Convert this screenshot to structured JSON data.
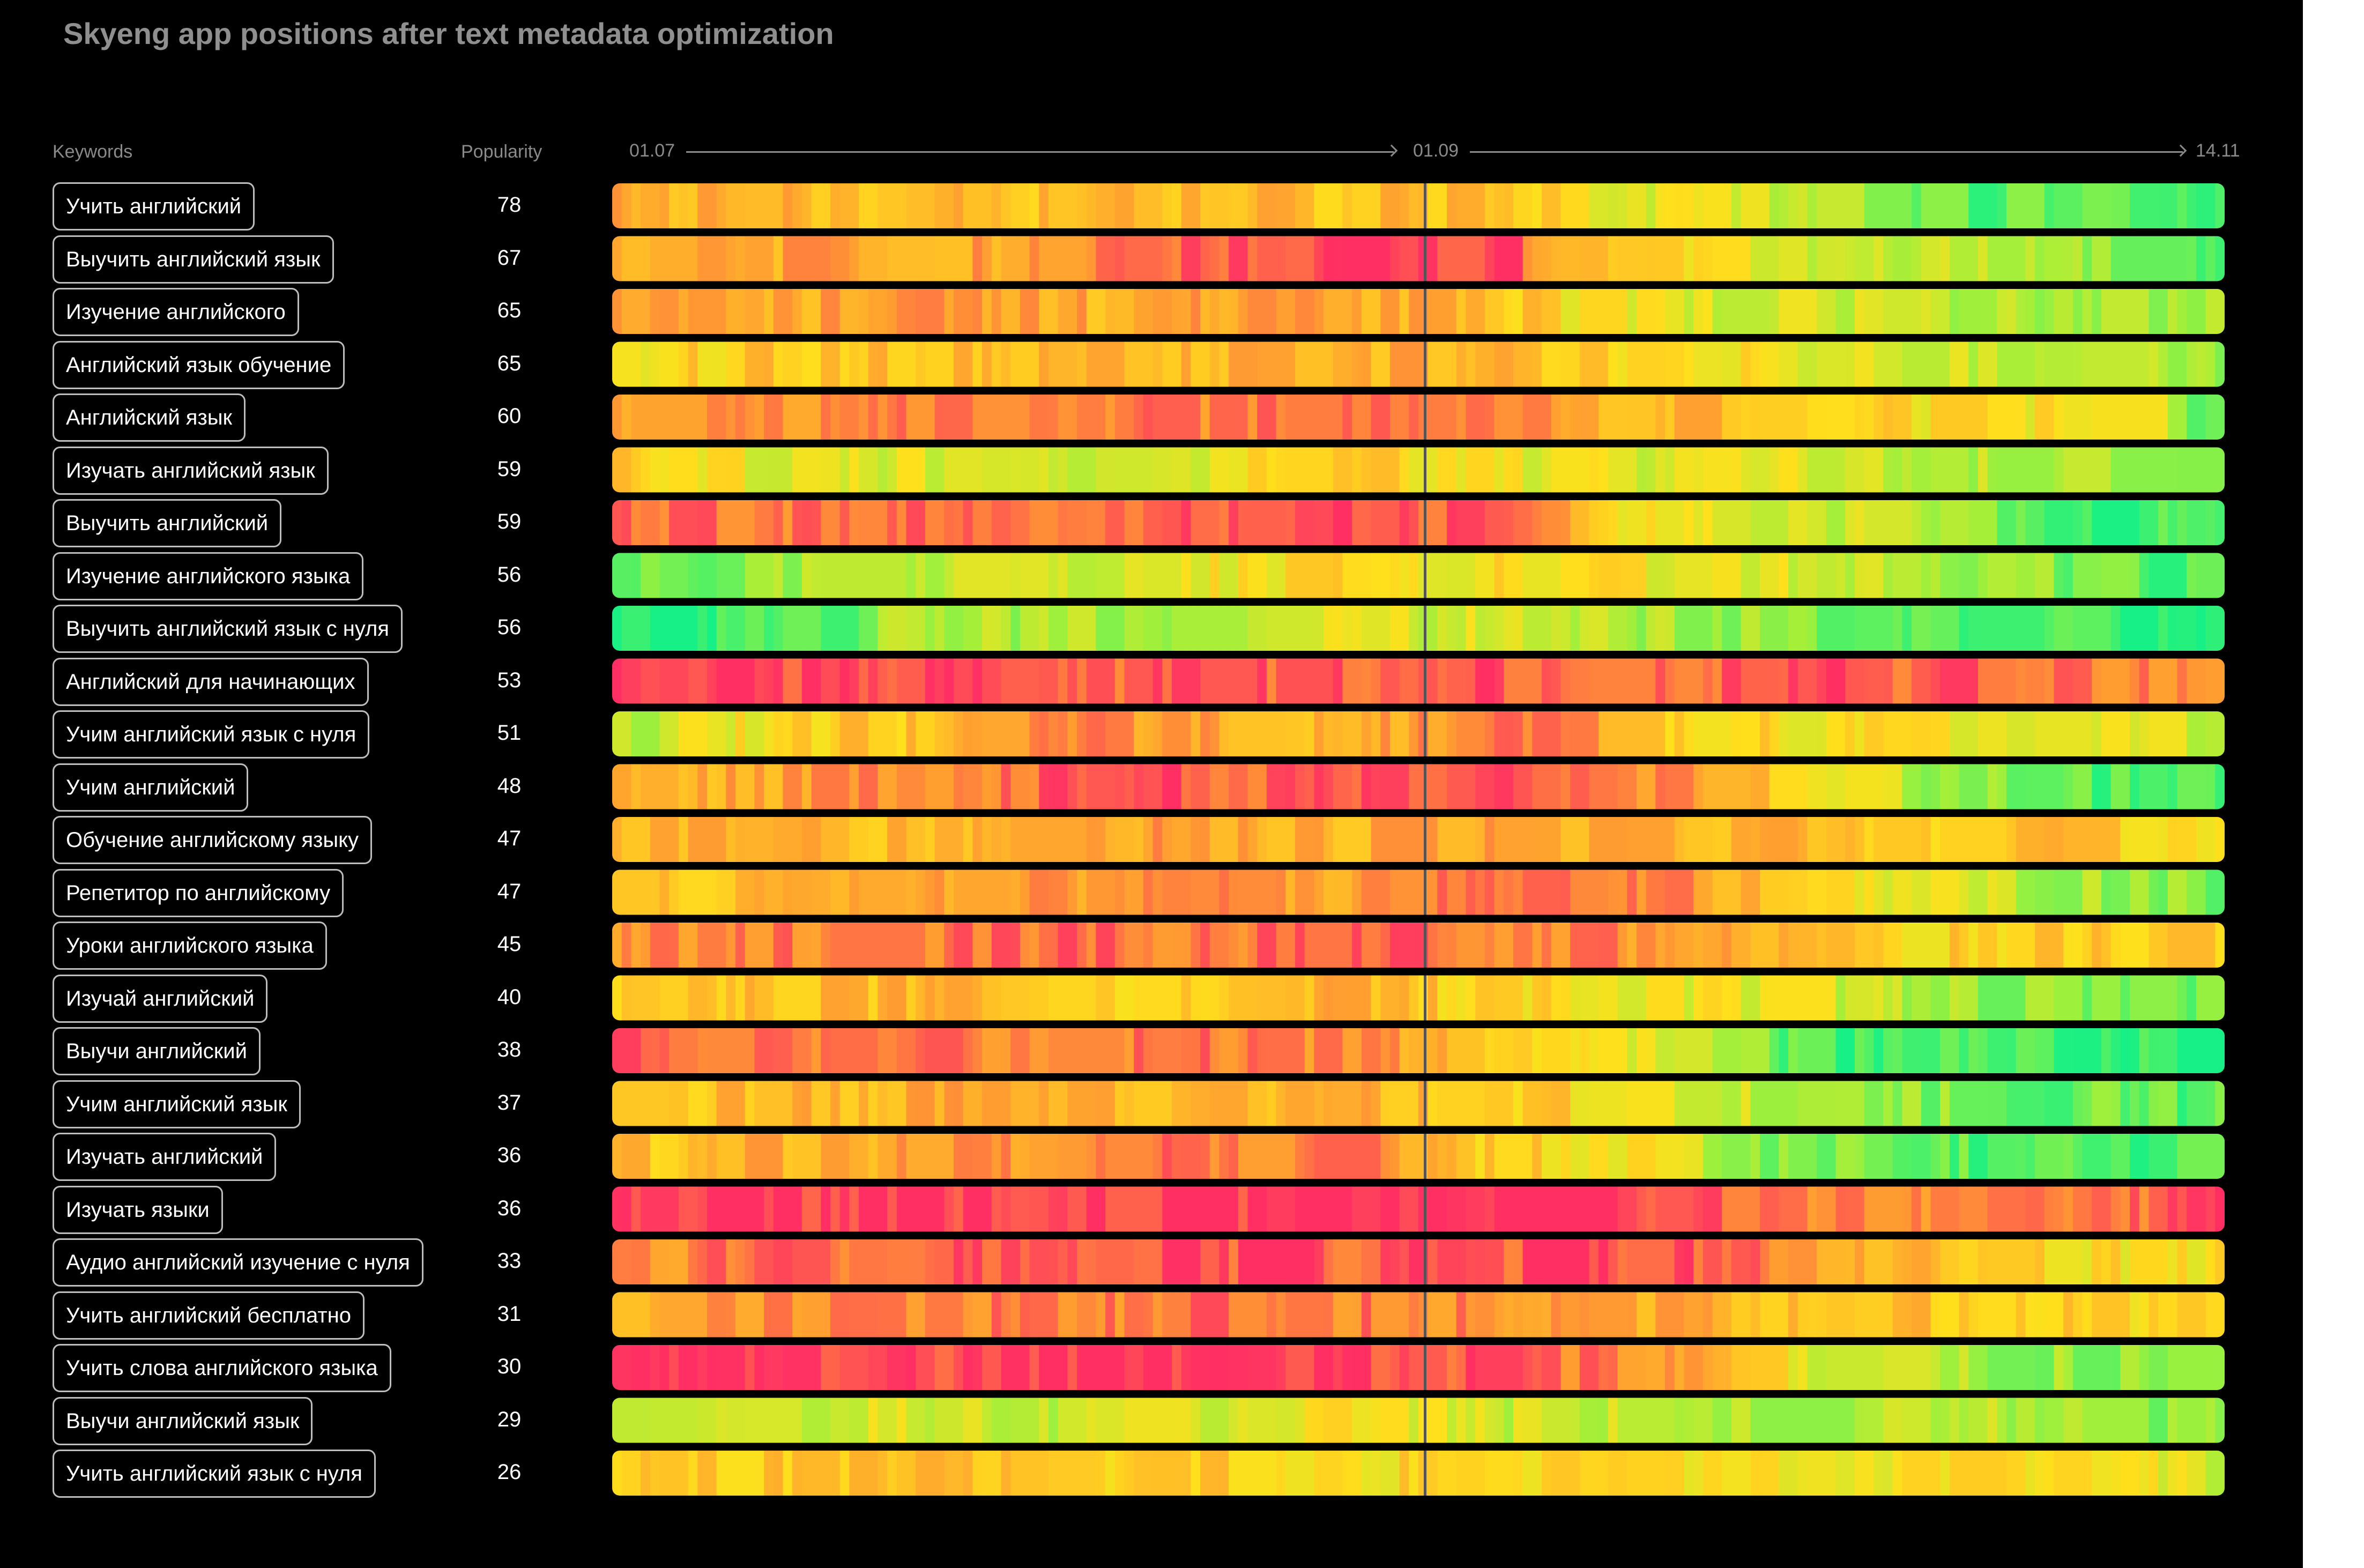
{
  "title": "Skyeng app positions after text metadata optimization",
  "columns": {
    "keywords": "Keywords",
    "popularity": "Popularity"
  },
  "colors": {
    "background": "#000000",
    "worst": "#ff2f64",
    "mid_low": "#ff9a32",
    "mid": "#ffe01c",
    "mid_high": "#9ef03c",
    "best": "#16f086",
    "separator": "#555555"
  },
  "chart_data": {
    "type": "heatmap",
    "x_ticks": [
      "01.07",
      "01.09",
      "14.11"
    ],
    "marker_at": "01.09",
    "rows": [
      {
        "keyword": "Учить английский",
        "popularity": 78,
        "trend": [
          0.3,
          0.34,
          0.35,
          0.4,
          0.35,
          0.38,
          0.36,
          0.56,
          0.62,
          0.84,
          0.9,
          0.88
        ]
      },
      {
        "keyword": "Выучить английский язык",
        "popularity": 67,
        "trend": [
          0.33,
          0.3,
          0.3,
          0.28,
          0.12,
          0.02,
          0.05,
          0.5,
          0.62,
          0.66,
          0.75,
          0.95
        ]
      },
      {
        "keyword": "Изучение английского",
        "popularity": 65,
        "trend": [
          0.26,
          0.3,
          0.28,
          0.32,
          0.3,
          0.3,
          0.38,
          0.58,
          0.62,
          0.68,
          0.7,
          0.74
        ]
      },
      {
        "keyword": "Английский язык обучение",
        "popularity": 65,
        "trend": [
          0.48,
          0.42,
          0.4,
          0.35,
          0.34,
          0.3,
          0.36,
          0.45,
          0.52,
          0.62,
          0.66,
          0.74
        ]
      },
      {
        "keyword": "Английский язык",
        "popularity": 60,
        "trend": [
          0.26,
          0.22,
          0.18,
          0.16,
          0.2,
          0.18,
          0.26,
          0.34,
          0.4,
          0.5,
          0.52,
          0.9
        ]
      },
      {
        "keyword": "Изучать английский язык",
        "popularity": 59,
        "trend": [
          0.44,
          0.58,
          0.6,
          0.62,
          0.56,
          0.42,
          0.52,
          0.6,
          0.58,
          0.66,
          0.74,
          0.78
        ]
      },
      {
        "keyword": "Выучить английский",
        "popularity": 59,
        "trend": [
          0.12,
          0.16,
          0.15,
          0.18,
          0.1,
          0.08,
          0.1,
          0.55,
          0.62,
          0.68,
          0.92,
          0.94
        ]
      },
      {
        "keyword": "Изучение английского языка",
        "popularity": 56,
        "trend": [
          0.92,
          0.74,
          0.68,
          0.62,
          0.55,
          0.48,
          0.5,
          0.54,
          0.6,
          0.7,
          0.82,
          0.92
        ]
      },
      {
        "keyword": "Выучить английский язык с нуля",
        "popularity": 56,
        "trend": [
          0.96,
          0.94,
          0.7,
          0.72,
          0.66,
          0.6,
          0.62,
          0.7,
          0.78,
          0.86,
          0.94,
          0.96
        ]
      },
      {
        "keyword": "Английский для начинающих",
        "popularity": 53,
        "trend": [
          0.05,
          0.1,
          0.06,
          0.12,
          0.1,
          0.12,
          0.1,
          0.14,
          0.08,
          0.12,
          0.15,
          0.2
        ]
      },
      {
        "keyword": "Учим английский язык с нуля",
        "popularity": 51,
        "trend": [
          0.7,
          0.48,
          0.4,
          0.2,
          0.3,
          0.38,
          0.1,
          0.4,
          0.48,
          0.54,
          0.58,
          0.62
        ]
      },
      {
        "keyword": "Учим английский",
        "popularity": 48,
        "trend": [
          0.4,
          0.3,
          0.2,
          0.12,
          0.1,
          0.12,
          0.1,
          0.2,
          0.4,
          0.72,
          0.88,
          0.92
        ]
      },
      {
        "keyword": "Обучение английскому языку",
        "popularity": 47,
        "trend": [
          0.3,
          0.34,
          0.36,
          0.3,
          0.28,
          0.34,
          0.3,
          0.32,
          0.36,
          0.4,
          0.42,
          0.44
        ]
      },
      {
        "keyword": "Репетитор по английскому",
        "popularity": 47,
        "trend": [
          0.4,
          0.38,
          0.3,
          0.26,
          0.22,
          0.26,
          0.1,
          0.2,
          0.36,
          0.6,
          0.72,
          0.8
        ]
      },
      {
        "keyword": "Уроки английского языка",
        "popularity": 45,
        "trend": [
          0.26,
          0.2,
          0.16,
          0.14,
          0.16,
          0.12,
          0.16,
          0.24,
          0.36,
          0.46,
          0.4,
          0.48
        ]
      },
      {
        "keyword": "Изучай английский",
        "popularity": 40,
        "trend": [
          0.42,
          0.4,
          0.36,
          0.44,
          0.4,
          0.3,
          0.48,
          0.52,
          0.6,
          0.7,
          0.82,
          0.86
        ]
      },
      {
        "keyword": "Выучи английский",
        "popularity": 38,
        "trend": [
          0.06,
          0.16,
          0.2,
          0.18,
          0.16,
          0.2,
          0.44,
          0.56,
          0.9,
          0.94,
          0.95,
          0.96
        ]
      },
      {
        "keyword": "Учим английский язык",
        "popularity": 37,
        "trend": [
          0.36,
          0.38,
          0.32,
          0.34,
          0.3,
          0.34,
          0.4,
          0.52,
          0.68,
          0.78,
          0.84,
          0.88
        ]
      },
      {
        "keyword": "Изучать английский",
        "popularity": 36,
        "trend": [
          0.4,
          0.34,
          0.3,
          0.22,
          0.14,
          0.2,
          0.42,
          0.54,
          0.8,
          0.86,
          0.9,
          0.92
        ]
      },
      {
        "keyword": "Изучать языки",
        "popularity": 36,
        "trend": [
          0.02,
          0.02,
          0.02,
          0.02,
          0.02,
          0.02,
          0.02,
          0.02,
          0.22,
          0.26,
          0.18,
          0.1
        ]
      },
      {
        "keyword": "Аудио английский изучение с нуля",
        "popularity": 33,
        "trend": [
          0.22,
          0.16,
          0.12,
          0.1,
          0.08,
          0.12,
          0.1,
          0.06,
          0.18,
          0.4,
          0.48,
          0.5
        ]
      },
      {
        "keyword": "Учить английский бесплатно",
        "popularity": 31,
        "trend": [
          0.28,
          0.24,
          0.2,
          0.18,
          0.16,
          0.18,
          0.2,
          0.3,
          0.38,
          0.4,
          0.44,
          0.46
        ]
      },
      {
        "keyword": "Учить слова английского языка",
        "popularity": 30,
        "trend": [
          0.04,
          0.06,
          0.04,
          0.04,
          0.02,
          0.04,
          0.1,
          0.2,
          0.6,
          0.7,
          0.76,
          0.86
        ]
      },
      {
        "keyword": "Выучи английский язык",
        "popularity": 29,
        "trend": [
          0.6,
          0.62,
          0.58,
          0.66,
          0.6,
          0.54,
          0.64,
          0.66,
          0.7,
          0.66,
          0.72,
          0.8
        ]
      },
      {
        "keyword": "Учить английский язык с нуля",
        "popularity": 26,
        "trend": [
          0.44,
          0.4,
          0.38,
          0.42,
          0.44,
          0.46,
          0.5,
          0.52,
          0.54,
          0.52,
          0.56,
          0.6
        ]
      }
    ]
  }
}
